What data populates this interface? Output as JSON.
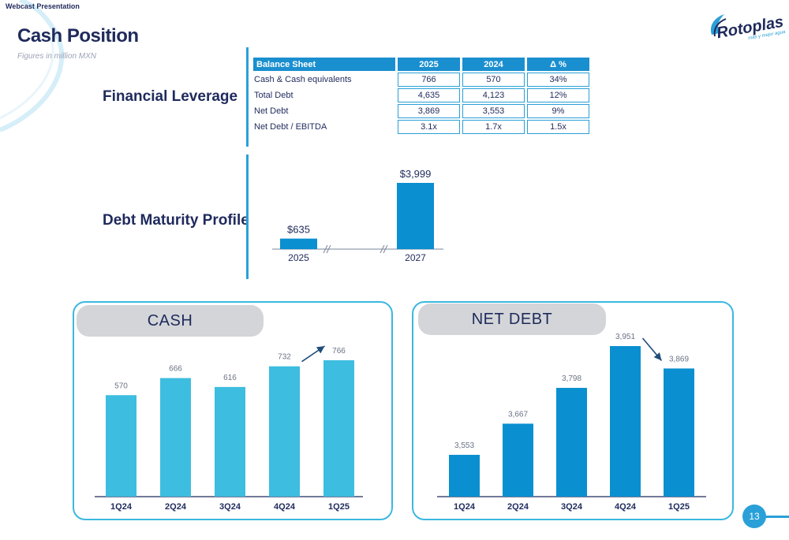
{
  "header": {
    "label": "Webcast Presentation",
    "title": "Cash Position",
    "subtitle": "Figures in million MXN"
  },
  "logo": {
    "name": "Rotoplas",
    "tagline": "más y mejor agua"
  },
  "sections": {
    "financial_leverage": "Financial Leverage",
    "debt_maturity": "Debt Maturity Profile"
  },
  "balance_sheet": {
    "headers": [
      "Balance Sheet",
      "2025",
      "2024",
      "Δ %"
    ],
    "rows": [
      {
        "label": "Cash & Cash equivalents",
        "v2025": "766",
        "v2024": "570",
        "delta": "34%"
      },
      {
        "label": "Total Debt",
        "v2025": "4,635",
        "v2024": "4,123",
        "delta": "12%"
      },
      {
        "label": "Net Debt",
        "v2025": "3,869",
        "v2024": "3,553",
        "delta": "9%"
      },
      {
        "label": "Net Debt / EBITDA",
        "v2025": "3.1x",
        "v2024": "1.7x",
        "delta": "1.5x"
      }
    ]
  },
  "chart_data": [
    {
      "id": "debt_maturity",
      "type": "bar",
      "categories": [
        "2025",
        "2027"
      ],
      "values": [
        635,
        3999
      ],
      "data_labels": [
        "$635",
        "$3,999"
      ],
      "color": "#0a8fd0",
      "axis_breaks": true
    },
    {
      "id": "cash",
      "type": "bar",
      "title": "CASH",
      "categories": [
        "1Q24",
        "2Q24",
        "3Q24",
        "4Q24",
        "1Q25"
      ],
      "values": [
        570,
        666,
        616,
        732,
        766
      ],
      "data_labels": [
        "570",
        "666",
        "616",
        "732",
        "766"
      ],
      "color": "#3dbde0",
      "trend_arrow": "up"
    },
    {
      "id": "net_debt",
      "type": "bar",
      "title": "NET DEBT",
      "categories": [
        "1Q24",
        "2Q24",
        "3Q24",
        "4Q24",
        "1Q25"
      ],
      "values": [
        3553,
        3667,
        3798,
        3951,
        3869
      ],
      "data_labels": [
        "3,553",
        "3,667",
        "3,798",
        "3,951",
        "3,869"
      ],
      "color": "#0a8fd0",
      "trend_arrow": "down"
    }
  ],
  "footer": {
    "page_number": "13"
  }
}
